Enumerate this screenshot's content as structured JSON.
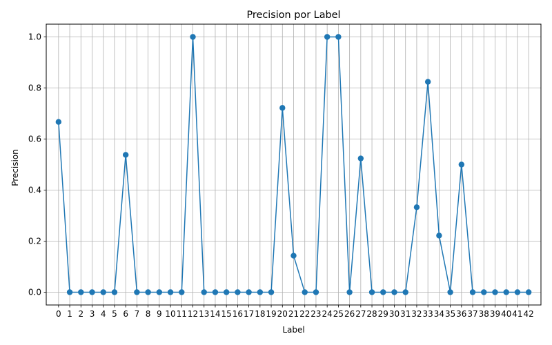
{
  "chart_data": {
    "type": "line",
    "title": "Precision por Label",
    "xlabel": "Label",
    "ylabel": "Precision",
    "x": [
      0,
      1,
      2,
      3,
      4,
      5,
      6,
      7,
      8,
      9,
      10,
      11,
      12,
      13,
      14,
      15,
      16,
      17,
      18,
      19,
      20,
      21,
      22,
      23,
      24,
      25,
      26,
      27,
      28,
      29,
      30,
      31,
      32,
      33,
      34,
      35,
      36,
      37,
      38,
      39,
      40,
      41,
      42
    ],
    "series": [
      {
        "values": [
          0.667,
          0,
          0,
          0,
          0,
          0,
          0.538,
          0,
          0,
          0,
          0,
          0,
          1.0,
          0,
          0,
          0,
          0,
          0,
          0,
          0,
          0.722,
          0.143,
          0,
          0,
          1.0,
          1.0,
          0,
          0.524,
          0,
          0,
          0,
          0,
          0.333,
          0.824,
          0.222,
          0,
          0.5,
          0,
          0,
          0,
          0,
          0,
          0
        ]
      }
    ],
    "yticks": [
      0.0,
      0.2,
      0.4,
      0.6,
      0.8,
      1.0
    ],
    "ylim": [
      -0.05,
      1.05
    ],
    "xlim": [
      -1.1,
      43.1
    ],
    "grid": true,
    "marker": "circle",
    "color": "#1f77b4"
  }
}
